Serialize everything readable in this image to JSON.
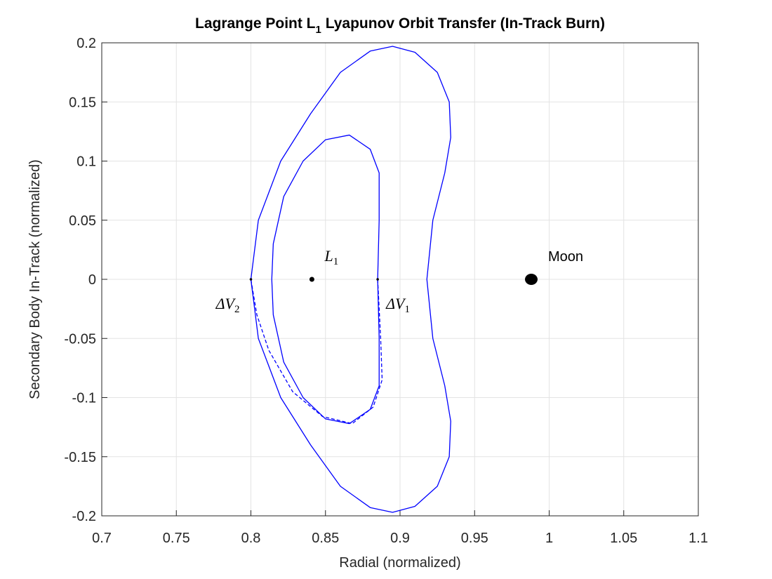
{
  "chart_data": {
    "type": "line",
    "title": [
      "Lagrange Point L",
      "1",
      " Lyapunov Orbit Transfer (In-Track Burn)"
    ],
    "xlabel": "Radial (normalized)",
    "ylabel": "Secondary Body In-Track (normalized)",
    "xlim": [
      0.7,
      1.1
    ],
    "ylim": [
      -0.2,
      0.2
    ],
    "xticks": [
      0.7,
      0.75,
      0.8,
      0.85,
      0.9,
      0.95,
      1,
      1.05,
      1.1
    ],
    "yticks": [
      -0.2,
      -0.15,
      -0.1,
      -0.05,
      0,
      0.05,
      0.1,
      0.15,
      0.2
    ],
    "grid": true,
    "series": [
      {
        "color": "#0000ff",
        "linestyle": "solid",
        "x": [
          0.8,
          0.805,
          0.82,
          0.84,
          0.86,
          0.88,
          0.895,
          0.91,
          0.925,
          0.933,
          0.934,
          0.93,
          0.922,
          0.918,
          0.922,
          0.93,
          0.934,
          0.933,
          0.925,
          0.91,
          0.895,
          0.88,
          0.86,
          0.84,
          0.82,
          0.805,
          0.8
        ],
        "y": [
          0,
          0.05,
          0.1,
          0.14,
          0.175,
          0.193,
          0.197,
          0.192,
          0.175,
          0.15,
          0.12,
          0.09,
          0.05,
          0,
          -0.05,
          -0.09,
          -0.12,
          -0.15,
          -0.175,
          -0.192,
          -0.197,
          -0.193,
          -0.175,
          -0.14,
          -0.1,
          -0.05,
          0
        ]
      },
      {
        "color": "#0000ff",
        "linestyle": "solid",
        "x": [
          0.885,
          0.886,
          0.886,
          0.88,
          0.866,
          0.85,
          0.835,
          0.822,
          0.815,
          0.814,
          0.815,
          0.822,
          0.835,
          0.85,
          0.866,
          0.88,
          0.886,
          0.886,
          0.885
        ],
        "y": [
          0,
          0.05,
          0.09,
          0.11,
          0.122,
          0.118,
          0.1,
          0.07,
          0.03,
          0,
          -0.03,
          -0.07,
          -0.1,
          -0.118,
          -0.122,
          -0.11,
          -0.09,
          -0.05,
          0
        ]
      },
      {
        "color": "#0000ff",
        "linestyle": "dashed",
        "x": [
          0.885,
          0.887,
          0.888,
          0.882,
          0.868,
          0.848,
          0.828,
          0.812,
          0.804,
          0.8
        ],
        "y": [
          0,
          -0.05,
          -0.085,
          -0.108,
          -0.122,
          -0.116,
          -0.095,
          -0.06,
          -0.03,
          0
        ]
      }
    ],
    "points": [
      {
        "label": [
          "L",
          "1"
        ],
        "x": 0.8409,
        "y": 0,
        "color": "#000000"
      },
      {
        "label": [
          "ΔV",
          "1"
        ],
        "x": 0.885,
        "y": 0,
        "color": "#000000"
      },
      {
        "label": [
          "ΔV",
          "2"
        ],
        "x": 0.8,
        "y": 0,
        "color": "#000000"
      },
      {
        "label": [
          "Moon"
        ],
        "x": 0.988,
        "y": 0,
        "color": "#000000"
      }
    ]
  }
}
